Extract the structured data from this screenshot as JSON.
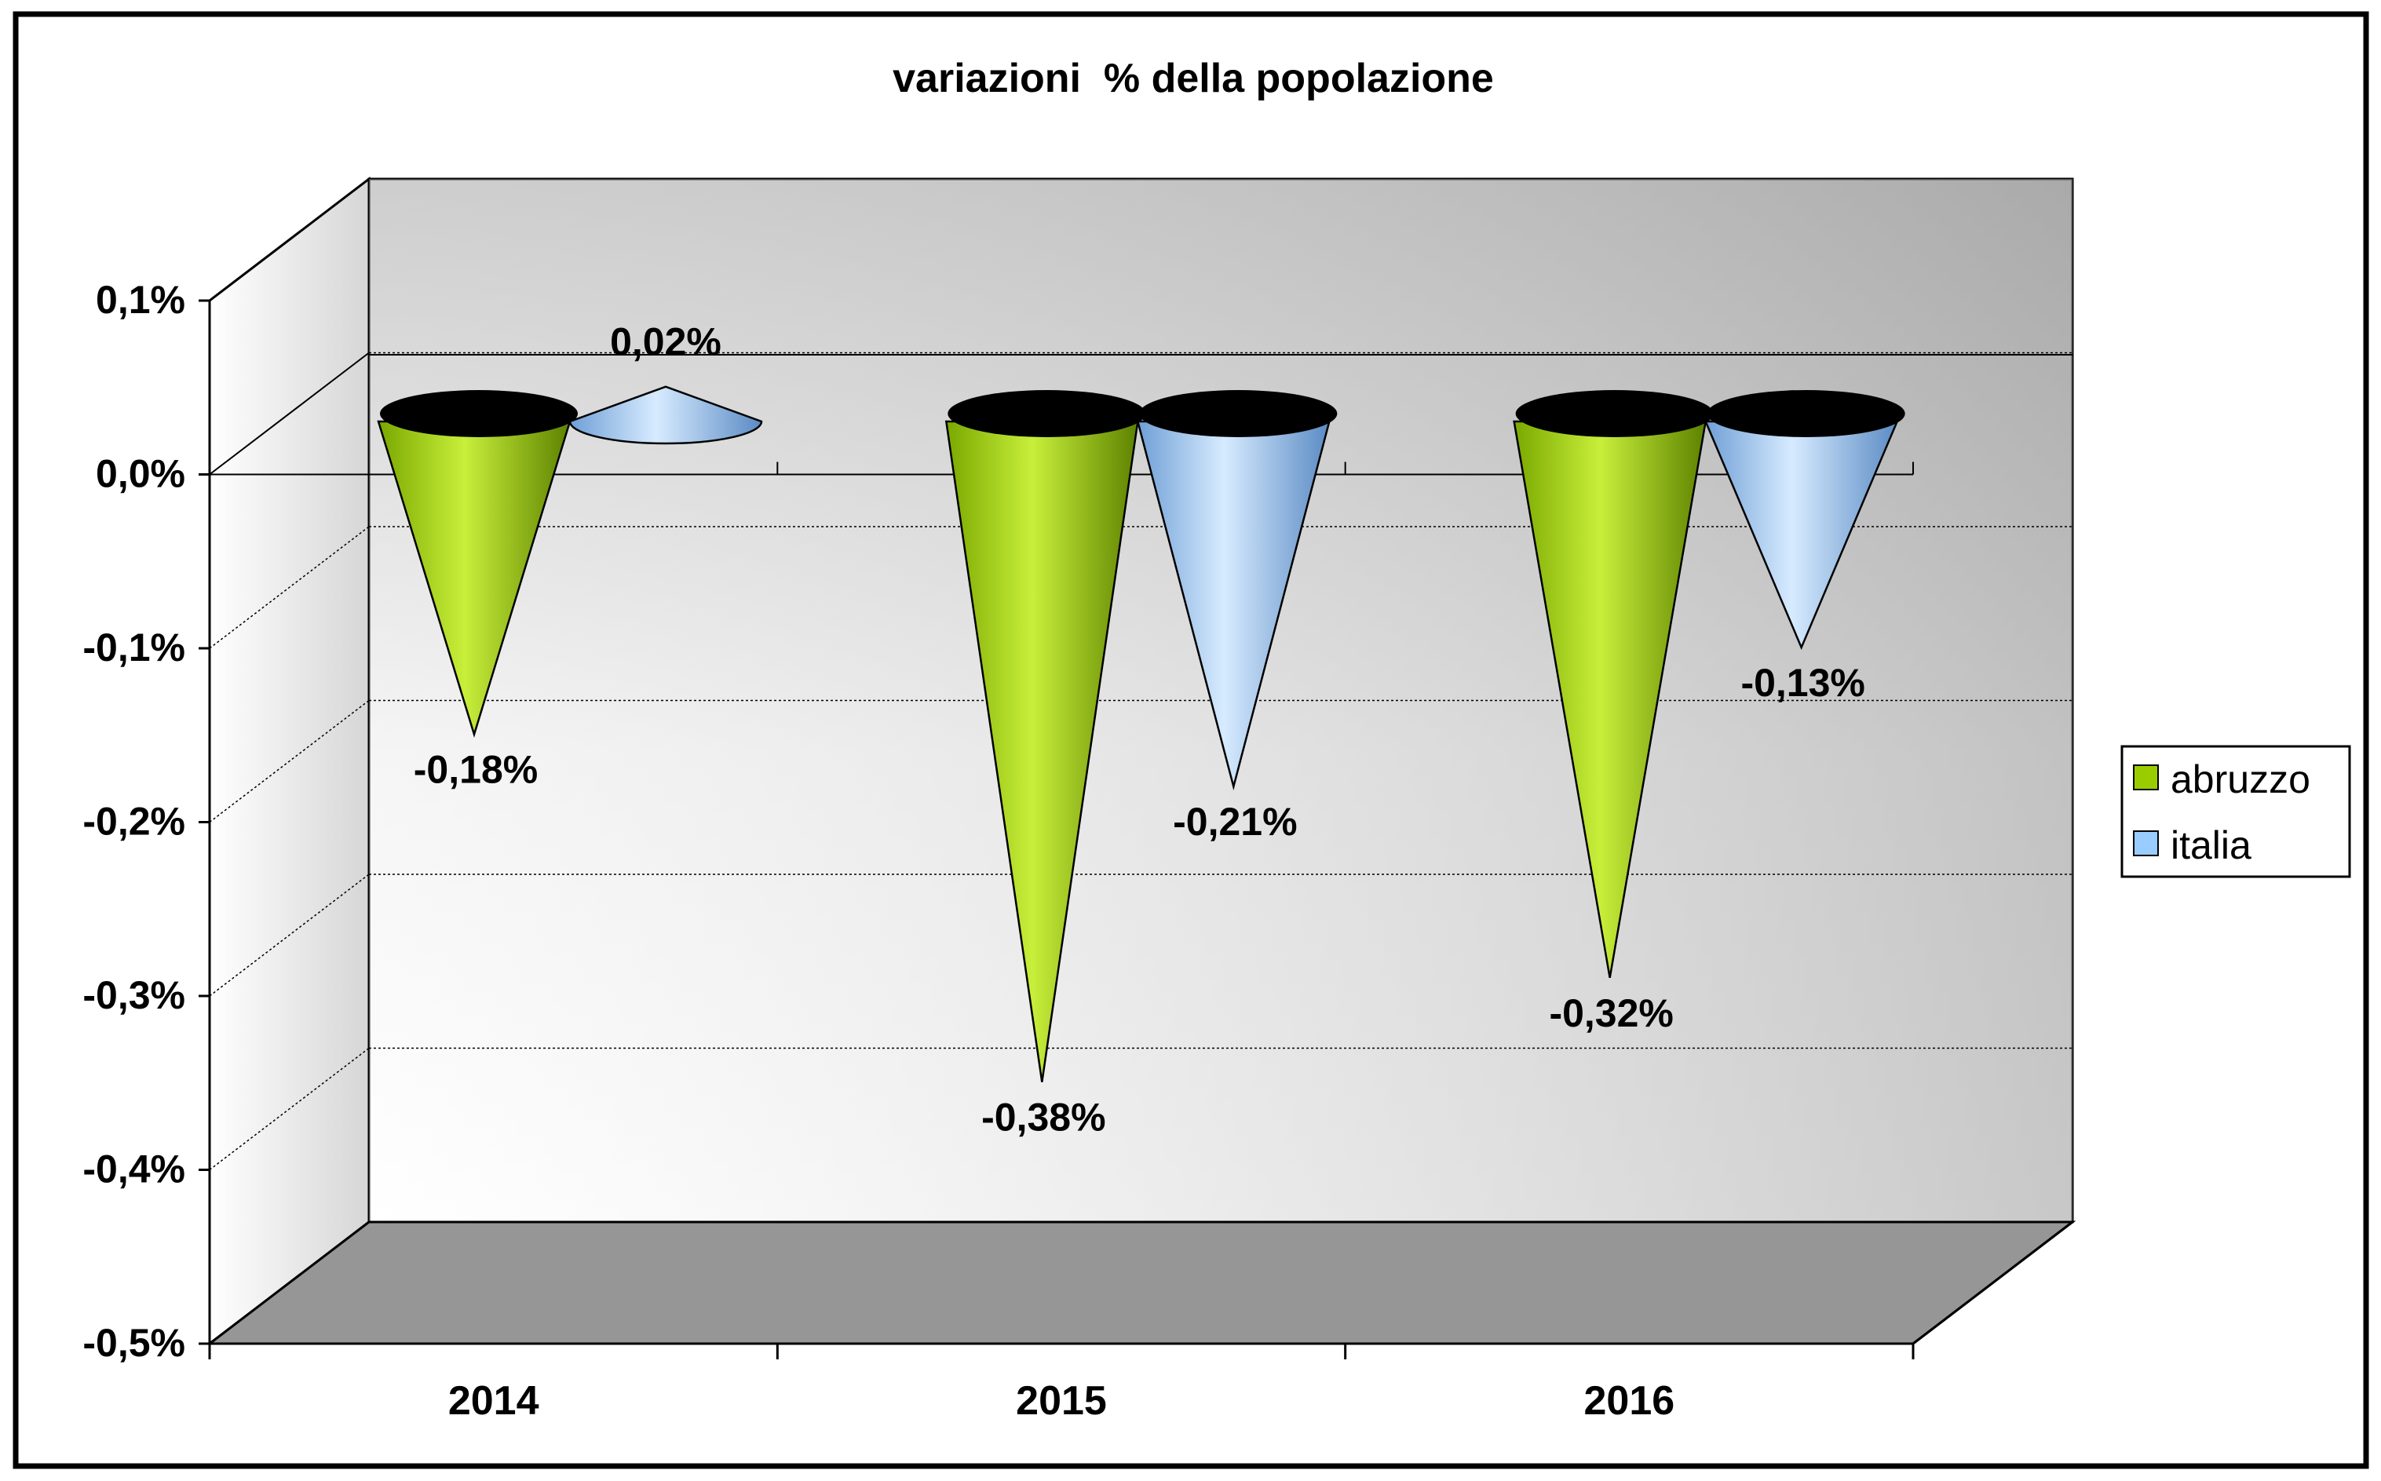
{
  "chart_data": {
    "type": "cone",
    "title": "variazioni  % della popolazione",
    "categories": [
      "2014",
      "2015",
      "2016"
    ],
    "series": [
      {
        "name": "abruzzo",
        "values": [
          -0.18,
          -0.38,
          -0.32
        ],
        "labels": [
          "-0,18%",
          "-0,38%",
          "-0,32%"
        ],
        "color": "#9acd00"
      },
      {
        "name": "italia",
        "values": [
          0.02,
          -0.21,
          -0.13
        ],
        "labels": [
          "0,02%",
          "-0,21%",
          "-0,13%"
        ],
        "color": "#99ccff"
      }
    ],
    "y_ticks": [
      0.1,
      0.0,
      -0.1,
      -0.2,
      -0.3,
      -0.4,
      -0.5
    ],
    "y_tick_labels": [
      "0,1%",
      "0,0%",
      "-0,1%",
      "-0,2%",
      "-0,3%",
      "-0,4%",
      "-0,5%"
    ],
    "ylim": [
      -0.5,
      0.1
    ],
    "xlabel": "",
    "ylabel": "",
    "grid": true,
    "legend_position": "right",
    "three_d": true
  }
}
